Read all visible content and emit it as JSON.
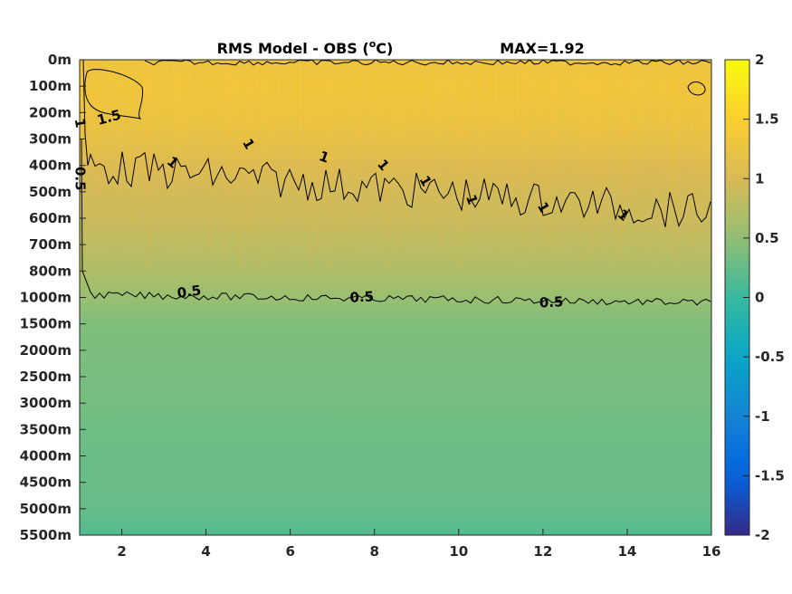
{
  "chart_data": {
    "type": "heatmap",
    "title": "RMS Model - OBS (",
    "title_unit": "o",
    "title_unit_letter": "C)",
    "max_label": "MAX=1.92",
    "x_ticks": [
      "2",
      "4",
      "6",
      "8",
      "10",
      "12",
      "14",
      "16"
    ],
    "x_tick_values": [
      2,
      4,
      6,
      8,
      10,
      12,
      14,
      16
    ],
    "xlim": [
      1,
      16
    ],
    "y_ticks": [
      "0m",
      "100m",
      "200m",
      "300m",
      "400m",
      "500m",
      "600m",
      "700m",
      "800m",
      "1000m",
      "1500m",
      "2000m",
      "2500m",
      "3000m",
      "3500m",
      "4000m",
      "4500m",
      "5000m",
      "5500m"
    ],
    "colorbar": {
      "ticks": [
        "2",
        "1.5",
        "1",
        "0.5",
        "0",
        "-0.5",
        "-1",
        "-1.5",
        "-2"
      ],
      "tick_values": [
        2,
        1.5,
        1,
        0.5,
        0,
        -0.5,
        -1,
        -1.5,
        -2
      ],
      "clim": [
        -2,
        2
      ],
      "colormap": "parula"
    },
    "depth_profile_rms": [
      {
        "depth": "0m",
        "value": 1.3
      },
      {
        "depth": "100m",
        "value": 1.35
      },
      {
        "depth": "200m",
        "value": 1.3
      },
      {
        "depth": "300m",
        "value": 1.2
      },
      {
        "depth": "400m",
        "value": 1.05
      },
      {
        "depth": "500m",
        "value": 0.95
      },
      {
        "depth": "600m",
        "value": 0.9
      },
      {
        "depth": "700m",
        "value": 0.8
      },
      {
        "depth": "800m",
        "value": 0.7
      },
      {
        "depth": "1000m",
        "value": 0.55
      },
      {
        "depth": "1500m",
        "value": 0.4
      },
      {
        "depth": "2000m",
        "value": 0.38
      },
      {
        "depth": "2500m",
        "value": 0.36
      },
      {
        "depth": "3000m",
        "value": 0.34
      },
      {
        "depth": "3500m",
        "value": 0.3
      },
      {
        "depth": "4000m",
        "value": 0.28
      },
      {
        "depth": "4500m",
        "value": 0.28
      },
      {
        "depth": "5000m",
        "value": 0.26
      },
      {
        "depth": "5500m",
        "value": 0.15
      }
    ],
    "contour_labels": [
      {
        "text": "1.5",
        "x": 1.7,
        "depth_index": 2.2,
        "angle": -15
      },
      {
        "text": "1",
        "x": 1.0,
        "depth_index": 2.4,
        "angle": 80
      },
      {
        "text": "0.5",
        "x": 1.0,
        "depth_index": 4.5,
        "angle": 90
      },
      {
        "text": "1",
        "x": 3.2,
        "depth_index": 3.9,
        "angle": 40
      },
      {
        "text": "1",
        "x": 5.0,
        "depth_index": 3.2,
        "angle": 60
      },
      {
        "text": "1",
        "x": 6.8,
        "depth_index": 3.7,
        "angle": 20
      },
      {
        "text": "1",
        "x": 8.2,
        "depth_index": 4.0,
        "angle": 50
      },
      {
        "text": "1",
        "x": 9.2,
        "depth_index": 4.6,
        "angle": 60
      },
      {
        "text": "1",
        "x": 10.3,
        "depth_index": 5.3,
        "angle": 70
      },
      {
        "text": "1",
        "x": 12.0,
        "depth_index": 5.6,
        "angle": 60
      },
      {
        "text": "1",
        "x": 13.9,
        "depth_index": 5.9,
        "angle": 40
      },
      {
        "text": "0.5",
        "x": 3.6,
        "depth_index": 8.8,
        "angle": -8
      },
      {
        "text": "0.5",
        "x": 7.7,
        "depth_index": 9.0,
        "angle": -3
      },
      {
        "text": "0.5",
        "x": 12.2,
        "depth_index": 9.2,
        "angle": -3
      }
    ]
  }
}
